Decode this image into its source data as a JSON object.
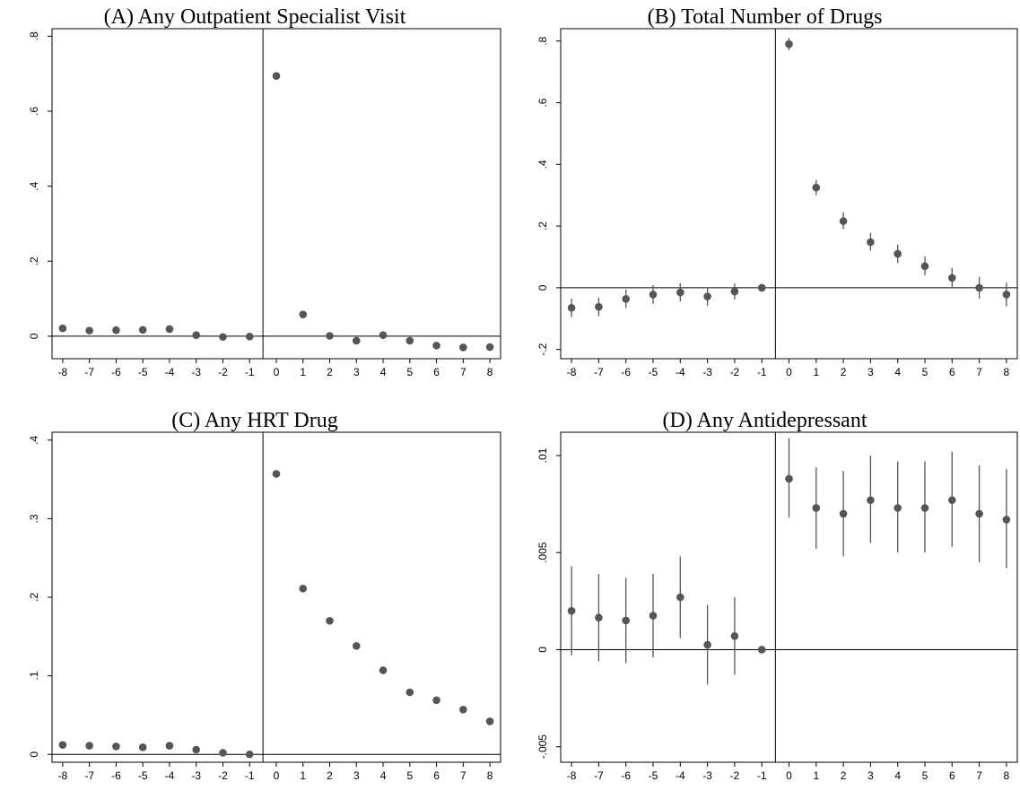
{
  "chart_data": [
    {
      "type": "scatter",
      "title": "(A) Any Outpatient Specialist Visit",
      "xlabel": "",
      "ylabel": "",
      "x": [
        -8,
        -7,
        -6,
        -5,
        -4,
        -3,
        -2,
        -1,
        0,
        1,
        2,
        3,
        4,
        5,
        6,
        7,
        8
      ],
      "y": [
        0.021,
        0.015,
        0.016,
        0.017,
        0.019,
        0.003,
        -0.002,
        -0.001,
        0.694,
        0.058,
        0.001,
        -0.012,
        0.003,
        -0.012,
        -0.025,
        -0.03,
        -0.029
      ],
      "ci_low": null,
      "ci_high": null,
      "xlim": [
        -8.4,
        8.4
      ],
      "ylim": [
        -0.06,
        0.82
      ],
      "yticks": [
        0,
        0.2,
        0.4,
        0.6,
        0.8
      ],
      "ytick_labels": [
        "0",
        ".2",
        ".4",
        ".6",
        ".8"
      ],
      "xticks": [
        -8,
        -7,
        -6,
        -5,
        -4,
        -3,
        -2,
        -1,
        0,
        1,
        2,
        3,
        4,
        5,
        6,
        7,
        8
      ],
      "xtick_labels": [
        "-8",
        "-7",
        "-6",
        "-5",
        "-4",
        "-3",
        "-2",
        "-1",
        "0",
        "1",
        "2",
        "3",
        "4",
        "5",
        "6",
        "7",
        "8"
      ],
      "vline_x": -0.5,
      "hline_y": 0,
      "grid": false,
      "legend": "none"
    },
    {
      "type": "scatter",
      "title": "(B) Total Number of Drugs",
      "xlabel": "",
      "ylabel": "",
      "x": [
        -8,
        -7,
        -6,
        -5,
        -4,
        -3,
        -2,
        -1,
        0,
        1,
        2,
        3,
        4,
        5,
        6,
        7,
        8
      ],
      "y": [
        -0.065,
        -0.062,
        -0.036,
        -0.022,
        -0.015,
        -0.028,
        -0.012,
        0,
        0.79,
        0.325,
        0.216,
        0.148,
        0.11,
        0.07,
        0.032,
        0,
        -0.022
      ],
      "ci_low": [
        -0.095,
        -0.092,
        -0.066,
        -0.052,
        -0.045,
        -0.058,
        -0.038,
        0,
        0.77,
        0.3,
        0.19,
        0.12,
        0.08,
        0.04,
        0.0,
        -0.035,
        -0.06
      ],
      "ci_high": [
        -0.035,
        -0.032,
        -0.006,
        0.008,
        0.015,
        0.002,
        0.014,
        0,
        0.81,
        0.35,
        0.245,
        0.178,
        0.14,
        0.102,
        0.065,
        0.035,
        0.016
      ],
      "xlim": [
        -8.4,
        8.4
      ],
      "ylim": [
        -0.23,
        0.84
      ],
      "yticks": [
        -0.2,
        0,
        0.2,
        0.4,
        0.6,
        0.8
      ],
      "ytick_labels": [
        "-.2",
        "0",
        ".2",
        ".4",
        ".6",
        ".8"
      ],
      "xticks": [
        -8,
        -7,
        -6,
        -5,
        -4,
        -3,
        -2,
        -1,
        0,
        1,
        2,
        3,
        4,
        5,
        6,
        7,
        8
      ],
      "xtick_labels": [
        "-8",
        "-7",
        "-6",
        "-5",
        "-4",
        "-3",
        "-2",
        "-1",
        "0",
        "1",
        "2",
        "3",
        "4",
        "5",
        "6",
        "7",
        "8"
      ],
      "vline_x": -0.5,
      "hline_y": 0,
      "grid": false,
      "legend": "none"
    },
    {
      "type": "scatter",
      "title": "(C) Any HRT Drug",
      "xlabel": "",
      "ylabel": "",
      "x": [
        -8,
        -7,
        -6,
        -5,
        -4,
        -3,
        -2,
        -1,
        0,
        1,
        2,
        3,
        4,
        5,
        6,
        7,
        8
      ],
      "y": [
        0.012,
        0.011,
        0.01,
        0.009,
        0.011,
        0.006,
        0.002,
        0,
        0.357,
        0.211,
        0.17,
        0.138,
        0.107,
        0.079,
        0.069,
        0.057,
        0.042
      ],
      "ci_low": null,
      "ci_high": null,
      "xlim": [
        -8.4,
        8.4
      ],
      "ylim": [
        -0.01,
        0.41
      ],
      "yticks": [
        0,
        0.1,
        0.2,
        0.3,
        0.4
      ],
      "ytick_labels": [
        "0",
        ".1",
        ".2",
        ".3",
        ".4"
      ],
      "xticks": [
        -8,
        -7,
        -6,
        -5,
        -4,
        -3,
        -2,
        -1,
        0,
        1,
        2,
        3,
        4,
        5,
        6,
        7,
        8
      ],
      "xtick_labels": [
        "-8",
        "-7",
        "-6",
        "-5",
        "-4",
        "-3",
        "-2",
        "-1",
        "0",
        "1",
        "2",
        "3",
        "4",
        "5",
        "6",
        "7",
        "8"
      ],
      "vline_x": -0.5,
      "hline_y": 0,
      "grid": false,
      "legend": "none"
    },
    {
      "type": "scatter",
      "title": "(D) Any Antidepressant",
      "xlabel": "",
      "ylabel": "",
      "x": [
        -8,
        -7,
        -6,
        -5,
        -4,
        -3,
        -2,
        -1,
        0,
        1,
        2,
        3,
        4,
        5,
        6,
        7,
        8
      ],
      "y": [
        0.002,
        0.00165,
        0.0015,
        0.00175,
        0.0027,
        0.00025,
        0.0007,
        0,
        0.0088,
        0.0073,
        0.007,
        0.0077,
        0.0073,
        0.0073,
        0.0077,
        0.007,
        0.0067
      ],
      "ci_low": [
        -0.0003,
        -0.0006,
        -0.0007,
        -0.0004,
        0.0006,
        -0.0018,
        -0.0013,
        0,
        0.0068,
        0.0052,
        0.0048,
        0.0055,
        0.005,
        0.005,
        0.0053,
        0.0045,
        0.0042
      ],
      "ci_high": [
        0.0043,
        0.0039,
        0.0037,
        0.0039,
        0.0048,
        0.0023,
        0.0027,
        0,
        0.0109,
        0.0094,
        0.0092,
        0.01,
        0.0097,
        0.0097,
        0.0102,
        0.0095,
        0.0093
      ],
      "xlim": [
        -8.4,
        8.4
      ],
      "ylim": [
        -0.0058,
        0.0112
      ],
      "yticks": [
        -0.005,
        0,
        0.005,
        0.01
      ],
      "ytick_labels": [
        "-.005",
        "0",
        ".005",
        ".01"
      ],
      "xticks": [
        -8,
        -7,
        -6,
        -5,
        -4,
        -3,
        -2,
        -1,
        0,
        1,
        2,
        3,
        4,
        5,
        6,
        7,
        8
      ],
      "xtick_labels": [
        "-8",
        "-7",
        "-6",
        "-5",
        "-4",
        "-3",
        "-2",
        "-1",
        "0",
        "1",
        "2",
        "3",
        "4",
        "5",
        "6",
        "7",
        "8"
      ],
      "vline_x": -0.5,
      "hline_y": 0,
      "grid": false,
      "legend": "none"
    }
  ],
  "colors": {
    "marker": "#555555",
    "errorbar": "#555555",
    "axis": "#000000"
  }
}
